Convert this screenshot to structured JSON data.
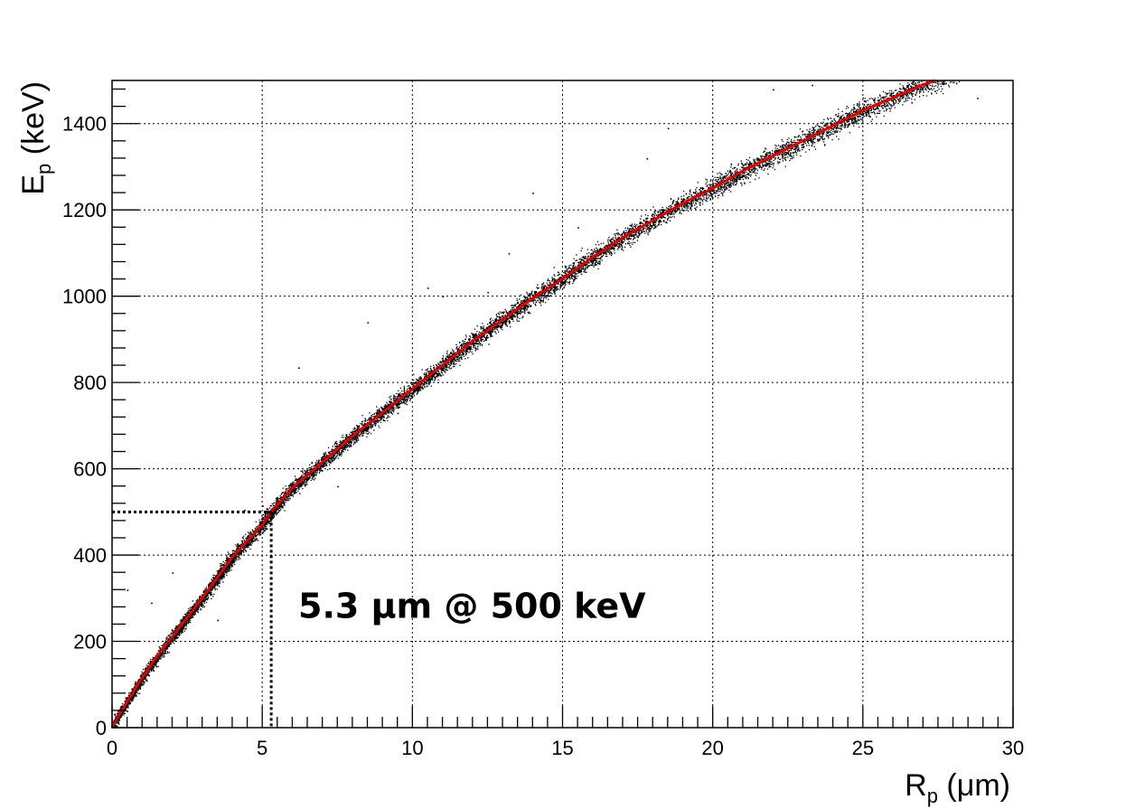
{
  "chart_data": {
    "type": "scatter",
    "title": "",
    "xlabel": {
      "main": "R",
      "sub": "p",
      "unit": " (μm)"
    },
    "ylabel": {
      "main": "E",
      "sub": "p",
      "unit": " (keV)"
    },
    "xlim": [
      0,
      30
    ],
    "ylim": [
      0,
      1500
    ],
    "grid": true,
    "grid_style": "dotted",
    "x_ticks": [
      0,
      5,
      10,
      15,
      20,
      25,
      30
    ],
    "y_ticks": [
      0,
      200,
      400,
      600,
      800,
      1000,
      1200,
      1400
    ],
    "series": [
      {
        "type": "scatter",
        "color": "#000000",
        "description_points": "dense band of simulated events",
        "x": [
          0.2,
          0.5,
          1.0,
          2.0,
          3.0,
          4.0,
          5.0,
          6.0,
          8.0,
          10.0,
          12.0,
          14.0,
          16.0,
          18.0,
          20.0,
          22.0,
          24.0,
          26.0,
          27.5,
          28.5
        ],
        "y": [
          20,
          60,
          120,
          215,
          310,
          395,
          480,
          550,
          685,
          790,
          905,
          1000,
          1095,
          1180,
          1240,
          1305,
          1375,
          1440,
          1490,
          1500
        ]
      },
      {
        "type": "line",
        "color": "#e00000",
        "x": [
          0,
          0.2,
          0.5,
          1.0,
          1.5,
          2.0,
          3.0,
          4.0,
          5.0,
          5.3,
          6.0,
          7.0,
          8.0,
          9.0,
          10.0,
          11.0,
          12.0,
          13.0,
          14.0,
          15.0,
          16.0,
          17.0,
          18.0,
          19.0,
          20.0,
          21.0,
          22.0,
          23.0,
          24.0,
          25.0,
          26.0,
          27.0,
          27.4
        ],
        "y": [
          0,
          25,
          60,
          115,
          165,
          210,
          300,
          395,
          470,
          500,
          555,
          615,
          675,
          730,
          785,
          840,
          895,
          945,
          995,
          1040,
          1090,
          1135,
          1175,
          1215,
          1250,
          1290,
          1325,
          1360,
          1395,
          1430,
          1460,
          1490,
          1500
        ]
      }
    ],
    "outliers": [
      [
        0.5,
        320
      ],
      [
        1.3,
        290
      ],
      [
        2.0,
        360
      ],
      [
        3.5,
        250
      ],
      [
        4.4,
        505
      ],
      [
        5.0,
        515
      ],
      [
        6.2,
        835
      ],
      [
        8.5,
        940
      ],
      [
        10.5,
        1020
      ],
      [
        11.0,
        1000
      ],
      [
        12.5,
        1010
      ],
      [
        13.2,
        1100
      ],
      [
        14.0,
        1240
      ],
      [
        15.5,
        1160
      ],
      [
        17.8,
        1320
      ],
      [
        18.5,
        1390
      ],
      [
        22.0,
        1480
      ],
      [
        23.3,
        1490
      ],
      [
        28.8,
        1460
      ],
      [
        7.5,
        560
      ],
      [
        9.5,
        730
      ]
    ],
    "reference_lines": {
      "color": "#000000",
      "style": "dotted",
      "x": 5.3,
      "y": 500
    },
    "annotation": {
      "text": "5.3 μm @ 500 keV",
      "x": 6.2,
      "y": 255
    }
  }
}
